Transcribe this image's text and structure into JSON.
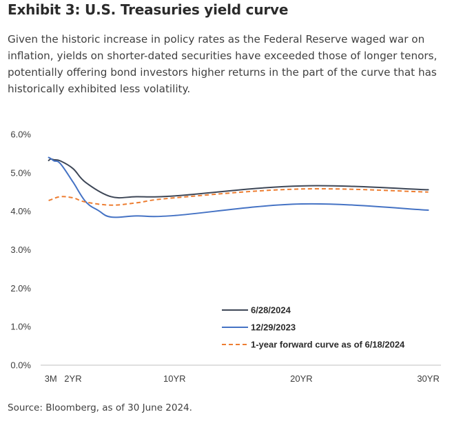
{
  "page": {
    "title": "Exhibit 3: U.S. Treasuries yield curve",
    "description": "Given the historic increase in policy rates as the Federal Reserve waged war on inflation, yields on shorter-dated securities have exceeded those of longer tenors, potentially offering bond investors higher returns in the part of the curve that has historically exhibited less volatility.",
    "source": "Source: Bloomberg, as of 30 June 2024."
  },
  "chart_data": {
    "type": "line",
    "title": "",
    "xlabel": "",
    "ylabel": "",
    "x_unit": "years to maturity",
    "xlim": [
      -0.55,
      31.0
    ],
    "ylim": [
      0,
      6
    ],
    "y_tick_values": [
      0,
      1,
      2,
      3,
      4,
      5,
      6
    ],
    "y_tick_labels": [
      "0.0%",
      "1.0%",
      "2.0%",
      "3.0%",
      "4.0%",
      "5.0%",
      "6.0%"
    ],
    "x_tick_values": [
      0.25,
      2,
      10,
      20,
      30
    ],
    "x_tick_labels": [
      "3M",
      "2YR",
      "10YR",
      "20YR",
      "30YR"
    ],
    "grid": false,
    "legend_position": "bottom-center",
    "series": [
      {
        "name": "6/28/2024",
        "color": "#3d4656",
        "dash": "solid",
        "points": [
          [
            0.08,
            5.32
          ],
          [
            0.25,
            5.36
          ],
          [
            0.5,
            5.34
          ],
          [
            1,
            5.31
          ],
          [
            2,
            5.11
          ],
          [
            3,
            4.75
          ],
          [
            5,
            4.38
          ],
          [
            7,
            4.38
          ],
          [
            10,
            4.4
          ],
          [
            20,
            4.66
          ],
          [
            30,
            4.56
          ]
        ]
      },
      {
        "name": "12/29/2023",
        "color": "#4472c4",
        "dash": "solid",
        "points": [
          [
            0.08,
            5.4
          ],
          [
            0.25,
            5.37
          ],
          [
            0.5,
            5.31
          ],
          [
            1,
            5.24
          ],
          [
            2,
            4.76
          ],
          [
            3,
            4.25
          ],
          [
            4,
            4.02
          ],
          [
            5,
            3.85
          ],
          [
            7,
            3.88
          ],
          [
            10,
            3.89
          ],
          [
            20,
            4.19
          ],
          [
            30,
            4.03
          ]
        ]
      },
      {
        "name": "1-year forward curve as of 6/18/2024",
        "color": "#ed7d31",
        "dash": "dashed",
        "points": [
          [
            0.08,
            4.28
          ],
          [
            0.25,
            4.3
          ],
          [
            1,
            4.38
          ],
          [
            2,
            4.35
          ],
          [
            3,
            4.24
          ],
          [
            5,
            4.16
          ],
          [
            7,
            4.22
          ],
          [
            10,
            4.35
          ],
          [
            20,
            4.58
          ],
          [
            30,
            4.5
          ]
        ]
      }
    ]
  }
}
